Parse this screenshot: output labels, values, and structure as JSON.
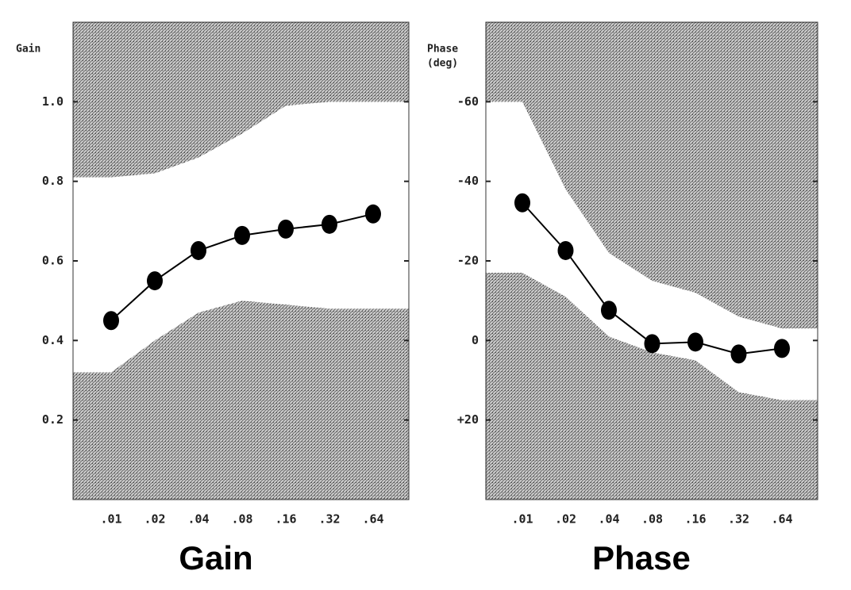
{
  "chart_data": [
    {
      "type": "line",
      "title": "Gain",
      "y_label": [
        "Gain"
      ],
      "categories": [
        ".01",
        ".02",
        ".04",
        ".08",
        ".16",
        ".32",
        ".64"
      ],
      "values": [
        0.45,
        0.55,
        0.626,
        0.664,
        0.68,
        0.692,
        0.718
      ],
      "band_upper": [
        0.81,
        0.82,
        0.86,
        0.92,
        0.99,
        1.0,
        1.0
      ],
      "band_lower": [
        0.32,
        0.4,
        0.47,
        0.5,
        0.49,
        0.48,
        0.48
      ],
      "color": "#000000",
      "ylim": [
        0,
        1.2
      ],
      "yticks": [
        0.2,
        0.4,
        0.6,
        {
          "value": 0.8,
          "label": "0.8"
        },
        {
          "value": 1,
          "label": "1.0"
        }
      ]
    },
    {
      "type": "line",
      "title": "Phase",
      "y_label": [
        "Phase",
        "(deg)"
      ],
      "categories": [
        ".01",
        ".02",
        ".04",
        ".08",
        ".16",
        ".32",
        ".64"
      ],
      "values": [
        -34.6,
        -22.6,
        -7.6,
        0.8,
        0.4,
        3.4,
        2
      ],
      "band_upper": [
        -60,
        -38,
        -22,
        -15,
        -12,
        -6,
        -3
      ],
      "band_lower": [
        -17,
        -11,
        -1,
        3,
        5,
        13,
        15
      ],
      "color": "#000000",
      "ylim": [
        40,
        -80
      ],
      "yticks": [
        -60,
        -40,
        -20,
        0,
        {
          "value": 20,
          "label": "+20"
        }
      ]
    }
  ]
}
